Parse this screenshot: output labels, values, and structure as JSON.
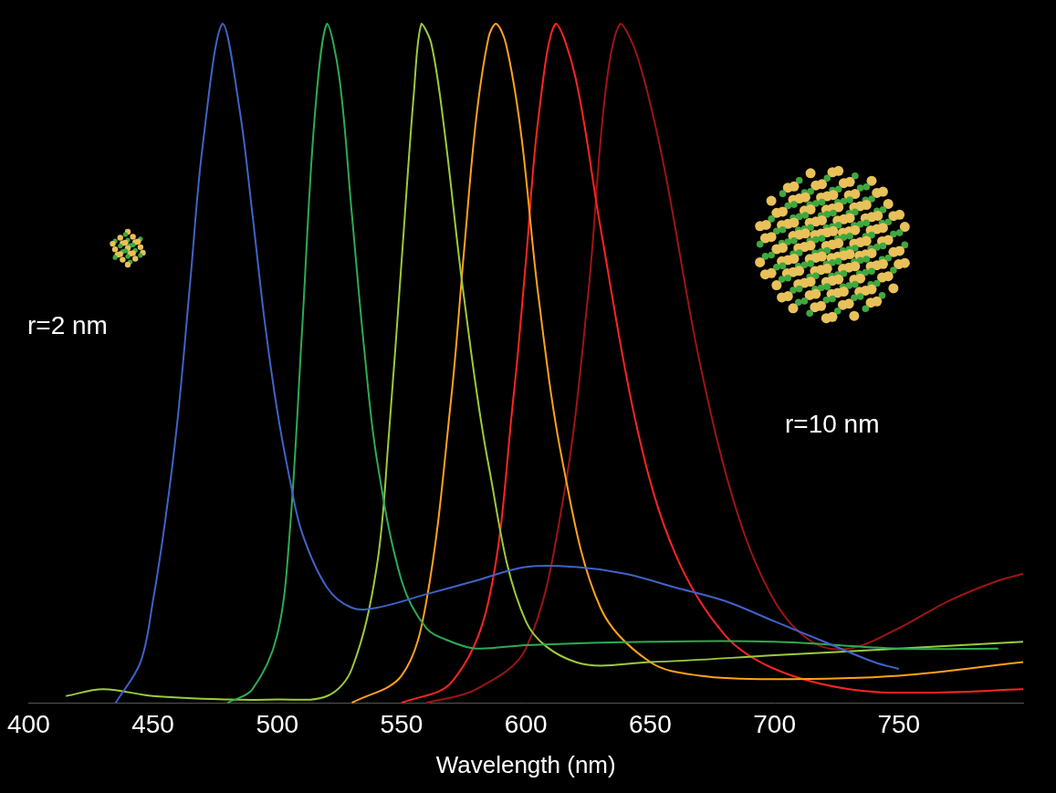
{
  "chart_data": {
    "type": "line",
    "x_label": "Wavelength (nm)",
    "xlim": [
      400,
      800
    ],
    "xticks": [
      400,
      450,
      500,
      550,
      600,
      650,
      700,
      750
    ],
    "ylim": [
      0,
      1
    ],
    "tick_labels": "x",
    "grid": false,
    "annotations": [
      "r=2 nm",
      "r=10 nm"
    ],
    "series": [
      {
        "color": "#3f63c8",
        "x": [
          435,
          445,
          450,
          455,
          460,
          465,
          470,
          478,
          485,
          490,
          495,
          500,
          505,
          510,
          520,
          530,
          540,
          560,
          580,
          600,
          620,
          640,
          660,
          680,
          700,
          720,
          740,
          750
        ],
        "values": [
          0,
          0.06,
          0.15,
          0.27,
          0.42,
          0.62,
          0.82,
          1.0,
          0.87,
          0.72,
          0.56,
          0.43,
          0.33,
          0.25,
          0.17,
          0.14,
          0.14,
          0.16,
          0.18,
          0.2,
          0.2,
          0.19,
          0.17,
          0.15,
          0.12,
          0.09,
          0.06,
          0.05
        ]
      },
      {
        "color": "#2eaa52",
        "x": [
          480,
          490,
          500,
          505,
          510,
          515,
          520,
          525,
          530,
          535,
          540,
          550,
          560,
          570,
          580,
          600,
          650,
          700,
          750,
          790
        ],
        "values": [
          0,
          0.02,
          0.1,
          0.25,
          0.55,
          0.86,
          1.0,
          0.92,
          0.72,
          0.52,
          0.36,
          0.18,
          0.11,
          0.09,
          0.08,
          0.085,
          0.09,
          0.09,
          0.08,
          0.08
        ]
      },
      {
        "color": "#9ccb3a",
        "x": [
          415,
          430,
          450,
          480,
          500,
          520,
          530,
          540,
          545,
          550,
          555,
          558,
          562,
          567,
          575,
          585,
          600,
          620,
          650,
          700,
          750,
          800
        ],
        "values": [
          0.01,
          0.02,
          0.01,
          0.005,
          0.005,
          0.01,
          0.05,
          0.2,
          0.4,
          0.65,
          0.9,
          1.0,
          0.97,
          0.85,
          0.6,
          0.35,
          0.12,
          0.06,
          0.06,
          0.07,
          0.08,
          0.09
        ]
      },
      {
        "color": "#ffa21a",
        "x": [
          530,
          550,
          560,
          570,
          575,
          580,
          585,
          588,
          592,
          598,
          605,
          615,
          630,
          650,
          670,
          700,
          750,
          800
        ],
        "values": [
          0,
          0.04,
          0.15,
          0.45,
          0.66,
          0.86,
          0.98,
          1.0,
          0.97,
          0.84,
          0.6,
          0.35,
          0.14,
          0.06,
          0.04,
          0.035,
          0.04,
          0.06
        ]
      },
      {
        "color": "#ff2424",
        "x": [
          550,
          570,
          585,
          595,
          600,
          605,
          612,
          620,
          630,
          645,
          660,
          680,
          700,
          730,
          760,
          800
        ],
        "values": [
          0,
          0.03,
          0.15,
          0.45,
          0.65,
          0.86,
          1.0,
          0.92,
          0.7,
          0.4,
          0.22,
          0.1,
          0.05,
          0.02,
          0.015,
          0.02
        ]
      },
      {
        "color": "#a01414",
        "x": [
          560,
          580,
          600,
          615,
          625,
          632,
          638,
          645,
          655,
          670,
          685,
          700,
          715,
          730,
          750,
          770,
          790,
          800
        ],
        "values": [
          0,
          0.02,
          0.08,
          0.3,
          0.6,
          0.9,
          1.0,
          0.95,
          0.8,
          0.5,
          0.28,
          0.15,
          0.09,
          0.08,
          0.11,
          0.15,
          0.18,
          0.19
        ]
      }
    ]
  }
}
